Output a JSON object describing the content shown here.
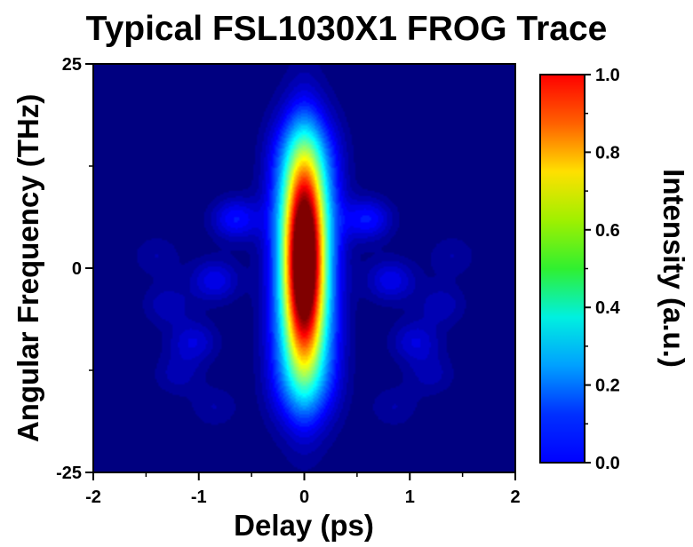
{
  "chart_data": {
    "type": "heatmap",
    "title": "Typical FSL1030X1 FROG Trace",
    "xlabel": "Delay (ps)",
    "ylabel": "Angular Frequency (THz)",
    "colorbar_label": "Intensity (a.u.)",
    "xlim": [
      -2,
      2
    ],
    "ylim": [
      -25,
      25
    ],
    "zlim": [
      0,
      1
    ],
    "x_ticks": [
      -2,
      -1,
      0,
      1,
      2
    ],
    "x_tick_labels": [
      "-2",
      "-1",
      "0",
      "1",
      "2"
    ],
    "y_ticks": [
      -25,
      0,
      25
    ],
    "y_tick_labels": [
      "-25",
      "0",
      "25"
    ],
    "colorbar_ticks": [
      0,
      0.2,
      0.4,
      0.6,
      0.8,
      1.0
    ],
    "colorbar_tick_labels": [
      "0.0",
      "0.2",
      "0.4",
      "0.6",
      "0.8",
      "1.0"
    ],
    "colormap": "jet",
    "grid": false,
    "colorbar_position": "right",
    "features": [
      {
        "kind": "central_peak",
        "delay": 0,
        "freq": 1,
        "sigma_delay": 0.13,
        "sigma_freq": 9,
        "intensity": 1.0
      },
      {
        "kind": "plateau",
        "delay": 0,
        "freq": 0,
        "half_width_delay": 0.36,
        "half_height_freq": 17,
        "intensity": 0.3
      },
      {
        "kind": "wing_lobe",
        "delay": -0.65,
        "freq": 6,
        "intensity": 0.15
      },
      {
        "kind": "wing_lobe",
        "delay": 0.6,
        "freq": 6,
        "intensity": 0.15
      },
      {
        "kind": "wing_lobe",
        "delay": -0.85,
        "freq": -1.5,
        "intensity": 0.12
      },
      {
        "kind": "wing_lobe",
        "delay": 0.82,
        "freq": -1.5,
        "intensity": 0.12
      },
      {
        "kind": "wing_lobe",
        "delay": -1.05,
        "freq": -9,
        "intensity": 0.1
      },
      {
        "kind": "wing_lobe",
        "delay": 1.05,
        "freq": -9,
        "intensity": 0.1
      },
      {
        "kind": "wing_lobe",
        "delay": -1.3,
        "freq": -4.5,
        "intensity": 0.07
      },
      {
        "kind": "wing_lobe",
        "delay": 1.3,
        "freq": -4.5,
        "intensity": 0.07
      },
      {
        "kind": "wing_lobe",
        "delay": -1.2,
        "freq": -13,
        "intensity": 0.06
      },
      {
        "kind": "wing_lobe",
        "delay": 1.2,
        "freq": -13,
        "intensity": 0.06
      },
      {
        "kind": "wing_lobe",
        "delay": -0.85,
        "freq": -17,
        "intensity": 0.05
      },
      {
        "kind": "wing_lobe",
        "delay": 0.85,
        "freq": -17,
        "intensity": 0.05
      },
      {
        "kind": "wing_lobe",
        "delay": -1.4,
        "freq": 1.5,
        "intensity": 0.05
      },
      {
        "kind": "wing_lobe",
        "delay": 1.4,
        "freq": 1.5,
        "intensity": 0.05
      }
    ]
  }
}
